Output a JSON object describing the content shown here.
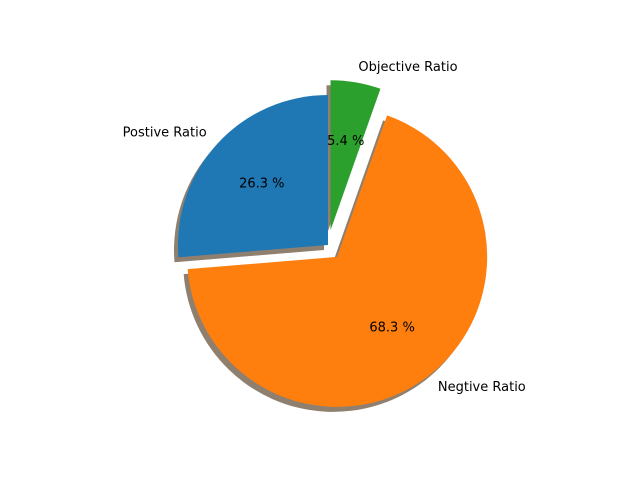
{
  "chart_data": {
    "type": "pie",
    "labels": [
      "Postive Ratio",
      "Negtive Ratio",
      "Objective Ratio"
    ],
    "values": [
      26.3,
      68.3,
      5.4
    ],
    "percent_labels": [
      "26.3 %",
      "68.3 %",
      "5.4 %"
    ],
    "colors": [
      "#1f77b4",
      "#ff7f0e",
      "#2ca02c"
    ],
    "explode": [
      0,
      0.1,
      0.1
    ],
    "start_angle_deg": 90,
    "direction": "counterclockwise",
    "shadow": true,
    "shadow_color": "#8f7f6f",
    "title": ""
  }
}
